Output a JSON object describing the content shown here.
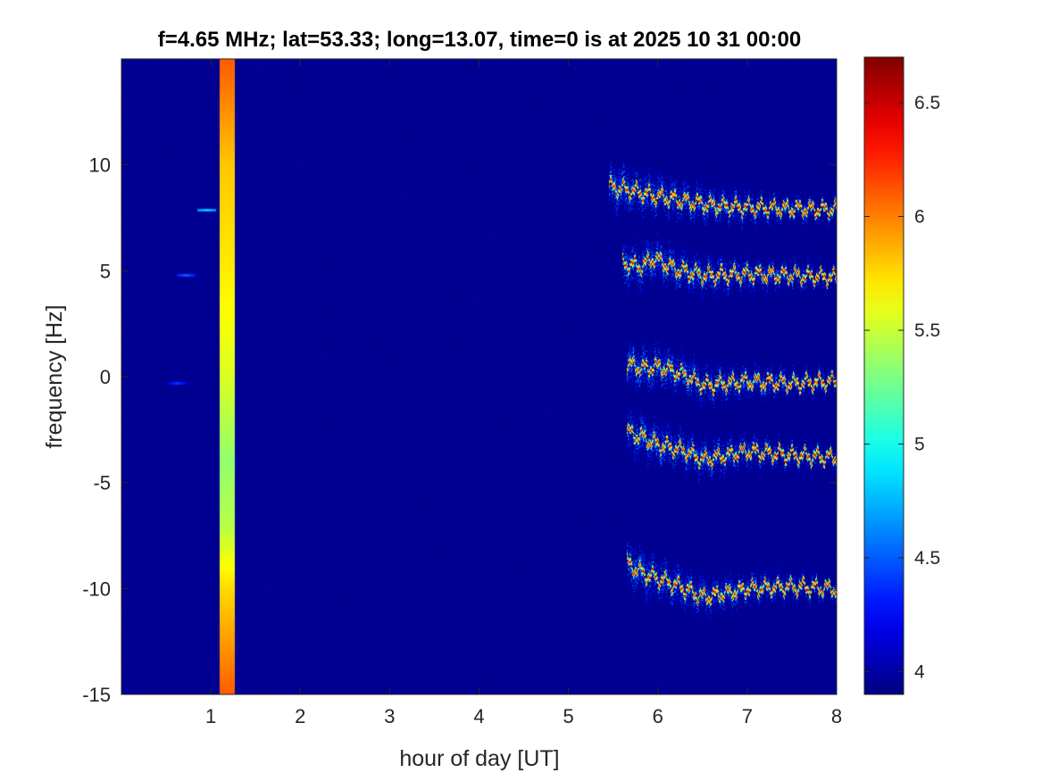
{
  "chart_data": {
    "type": "heatmap",
    "title": "f=4.65 MHz;  lat=53.33; long=13.07, time=0 is at 2025 10 31 00:00",
    "xlabel": "hour of day [UT]",
    "ylabel": "frequency [Hz]",
    "xlim": [
      0,
      8
    ],
    "ylim": [
      -15,
      15
    ],
    "x_ticks": [
      1,
      2,
      3,
      4,
      5,
      6,
      7,
      8
    ],
    "x_tick_labels": [
      "1",
      "2",
      "3",
      "4",
      "5",
      "6",
      "7",
      "8"
    ],
    "y_ticks": [
      -15,
      -10,
      -5,
      0,
      5,
      10
    ],
    "y_tick_labels": [
      "-15",
      "-10",
      "-5",
      "0",
      "5",
      "10"
    ],
    "colorbar": {
      "colormap": "jet",
      "range": [
        3.9,
        6.7
      ],
      "ticks": [
        4,
        4.5,
        5,
        5.5,
        6,
        6.5
      ],
      "tick_labels": [
        "4",
        "4.5",
        "5",
        "5.5",
        "6",
        "6.5"
      ]
    },
    "background_value": 3.95,
    "vertical_band": {
      "x_start": 1.1,
      "x_end": 1.27,
      "profile": [
        [
          15,
          6.1
        ],
        [
          10,
          5.8
        ],
        [
          5,
          5.7
        ],
        [
          0,
          5.55
        ],
        [
          -4,
          5.35
        ],
        [
          -7,
          5.45
        ],
        [
          -10,
          5.75
        ],
        [
          -15,
          6.1
        ]
      ]
    },
    "traces": [
      {
        "name": "",
        "x_start": 5.45,
        "x_end": 8.0,
        "y_points": [
          [
            5.45,
            9.0
          ],
          [
            5.7,
            8.8
          ],
          [
            5.9,
            8.6
          ],
          [
            6.3,
            8.3
          ],
          [
            6.6,
            8.1
          ],
          [
            7.0,
            8.0
          ],
          [
            7.5,
            7.95
          ],
          [
            8.0,
            7.9
          ]
        ]
      },
      {
        "name": "",
        "x_start": 5.6,
        "x_end": 8.0,
        "y_points": [
          [
            5.6,
            5.4
          ],
          [
            5.8,
            5.2
          ],
          [
            5.95,
            5.6
          ],
          [
            6.2,
            5.1
          ],
          [
            6.5,
            4.8
          ],
          [
            7.0,
            4.85
          ],
          [
            7.5,
            4.8
          ],
          [
            8.0,
            4.7
          ]
        ]
      },
      {
        "name": "",
        "x_start": 5.65,
        "x_end": 8.0,
        "y_points": [
          [
            5.65,
            0.6
          ],
          [
            5.85,
            0.4
          ],
          [
            6.0,
            0.5
          ],
          [
            6.3,
            0.1
          ],
          [
            6.5,
            -0.4
          ],
          [
            7.0,
            -0.2
          ],
          [
            7.5,
            -0.3
          ],
          [
            8.0,
            -0.2
          ]
        ]
      },
      {
        "name": "",
        "x_start": 5.65,
        "x_end": 8.0,
        "y_points": [
          [
            5.65,
            -2.6
          ],
          [
            5.85,
            -2.9
          ],
          [
            6.0,
            -3.2
          ],
          [
            6.3,
            -3.5
          ],
          [
            6.5,
            -3.9
          ],
          [
            7.0,
            -3.5
          ],
          [
            7.5,
            -3.7
          ],
          [
            8.0,
            -3.8
          ]
        ]
      },
      {
        "name": "",
        "x_start": 5.65,
        "x_end": 8.0,
        "y_points": [
          [
            5.65,
            -8.8
          ],
          [
            5.85,
            -9.3
          ],
          [
            6.0,
            -9.5
          ],
          [
            6.3,
            -10.0
          ],
          [
            6.5,
            -10.4
          ],
          [
            7.0,
            -10.0
          ],
          [
            7.5,
            -9.9
          ],
          [
            8.0,
            -10.0
          ]
        ]
      }
    ],
    "spots": [
      {
        "x": 0.95,
        "y": 7.9,
        "value": 4.8
      },
      {
        "x": 0.72,
        "y": 4.8,
        "value": 4.5
      },
      {
        "x": 0.62,
        "y": -0.3,
        "value": 4.4
      }
    ],
    "grid": false
  }
}
